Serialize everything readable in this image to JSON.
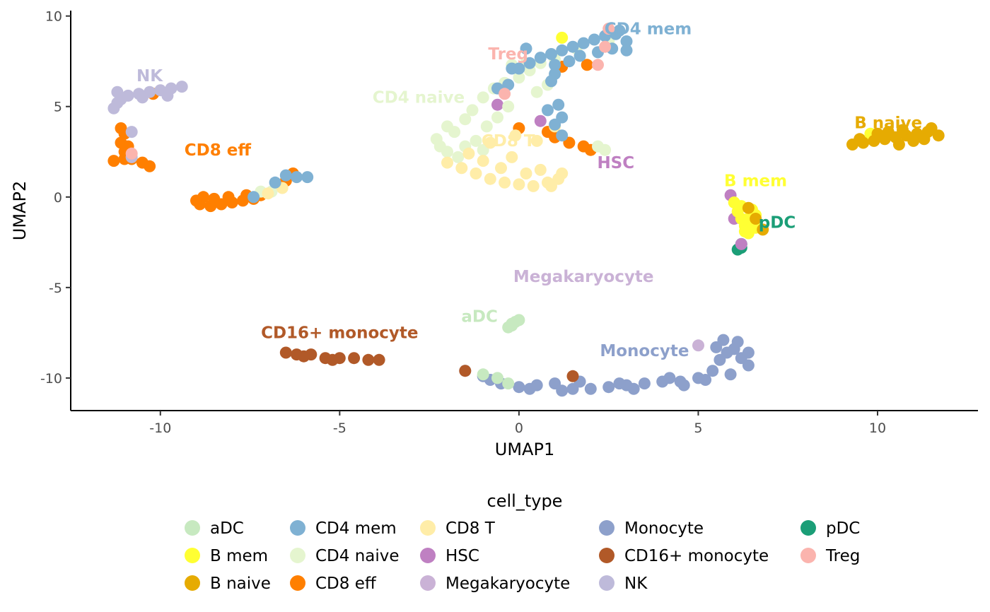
{
  "chart_data": {
    "type": "scatter",
    "title": "",
    "xlabel": "UMAP1",
    "ylabel": "UMAP2",
    "xlim": [
      -12.5,
      12.8
    ],
    "ylim": [
      -11.8,
      10.3
    ],
    "xticks": [
      -10,
      -5,
      0,
      5,
      10
    ],
    "yticks": [
      -10,
      -5,
      0,
      5,
      10
    ],
    "x_tick_labels": [
      "-10",
      "-5",
      "0",
      "5",
      "10"
    ],
    "y_tick_labels": [
      "-10",
      "-5",
      "0",
      "5",
      "10"
    ],
    "grid": false,
    "legend": {
      "title": "cell_type",
      "position": "bottom",
      "columns": 5,
      "entries": [
        {
          "name": "aDC",
          "color": "#C7E9C0"
        },
        {
          "name": "B mem",
          "color": "#FFFF33"
        },
        {
          "name": "B naive",
          "color": "#E6AB02"
        },
        {
          "name": "CD4 mem",
          "color": "#7FB1D3"
        },
        {
          "name": "CD4 naive",
          "color": "#E5F5CF"
        },
        {
          "name": "CD8 eff",
          "color": "#FF7F00"
        },
        {
          "name": "CD8 T",
          "color": "#FFEDA8"
        },
        {
          "name": "HSC",
          "color": "#BF80C2"
        },
        {
          "name": "Megakaryocyte",
          "color": "#CAB2D6"
        },
        {
          "name": "Monocyte",
          "color": "#8DA0CB"
        },
        {
          "name": "CD16+ monocyte",
          "color": "#B15928"
        },
        {
          "name": "NK",
          "color": "#BEBADA"
        },
        {
          "name": "pDC",
          "color": "#1B9E77"
        },
        {
          "name": "Treg",
          "color": "#FBB4AE"
        }
      ]
    },
    "cluster_labels": [
      {
        "text": "CD4 mem",
        "x": 3.6,
        "y": 9.0,
        "color": "#7FB1D3"
      },
      {
        "text": "Treg",
        "x": -0.3,
        "y": 7.6,
        "color": "#FBB4AE"
      },
      {
        "text": "NK",
        "x": -10.3,
        "y": 6.4,
        "color": "#BEBADA"
      },
      {
        "text": "CD4 naive",
        "x": -2.8,
        "y": 5.2,
        "color": "#E5F5CF"
      },
      {
        "text": "B naive",
        "x": 10.3,
        "y": 3.8,
        "color": "#E6AB02"
      },
      {
        "text": "CD8 T",
        "x": -0.3,
        "y": 2.8,
        "color": "#FFEDA8"
      },
      {
        "text": "CD8 eff",
        "x": -8.4,
        "y": 2.3,
        "color": "#FF7F00"
      },
      {
        "text": "HSC",
        "x": 2.7,
        "y": 1.6,
        "color": "#BF80C2"
      },
      {
        "text": "B mem",
        "x": 6.6,
        "y": 0.6,
        "color": "#FFFF33"
      },
      {
        "text": "pDC",
        "x": 7.2,
        "y": -1.7,
        "color": "#1B9E77"
      },
      {
        "text": "Megakaryocyte",
        "x": 1.8,
        "y": -4.7,
        "color": "#CAB2D6"
      },
      {
        "text": "aDC",
        "x": -1.1,
        "y": -6.9,
        "color": "#C7E9C0"
      },
      {
        "text": "CD16+ monocyte",
        "x": -5.0,
        "y": -7.8,
        "color": "#B15928"
      },
      {
        "text": "Monocyte",
        "x": 3.5,
        "y": -8.8,
        "color": "#8DA0CB"
      }
    ],
    "series": [
      {
        "name": "Monocyte",
        "color": "#8DA0CB",
        "points": [
          [
            -1.5,
            -9.6
          ],
          [
            -1.0,
            -9.9
          ],
          [
            -0.5,
            -10.3
          ],
          [
            0.0,
            -10.5
          ],
          [
            0.5,
            -10.4
          ],
          [
            1.0,
            -10.3
          ],
          [
            1.5,
            -10.6
          ],
          [
            2.0,
            -10.6
          ],
          [
            2.5,
            -10.5
          ],
          [
            3.0,
            -10.4
          ],
          [
            3.5,
            -10.3
          ],
          [
            4.0,
            -10.2
          ],
          [
            4.5,
            -10.2
          ],
          [
            5.0,
            -10.0
          ],
          [
            5.4,
            -9.6
          ],
          [
            5.6,
            -9.0
          ],
          [
            5.8,
            -8.6
          ],
          [
            6.0,
            -8.4
          ],
          [
            6.2,
            -8.9
          ],
          [
            6.4,
            -9.3
          ],
          [
            5.9,
            -9.8
          ],
          [
            5.2,
            -10.1
          ],
          [
            4.6,
            -10.4
          ],
          [
            3.2,
            -10.6
          ],
          [
            1.2,
            -10.7
          ],
          [
            0.3,
            -10.6
          ],
          [
            -0.8,
            -10.1
          ],
          [
            5.7,
            -7.9
          ],
          [
            6.1,
            -8.0
          ],
          [
            5.5,
            -8.3
          ],
          [
            6.4,
            -8.6
          ],
          [
            4.2,
            -10.0
          ],
          [
            2.8,
            -10.3
          ],
          [
            1.7,
            -10.2
          ]
        ]
      },
      {
        "name": "CD16+ monocyte",
        "color": "#B15928",
        "points": [
          [
            -6.5,
            -8.6
          ],
          [
            -6.2,
            -8.7
          ],
          [
            -5.8,
            -8.7
          ],
          [
            -5.4,
            -8.9
          ],
          [
            -5.0,
            -8.9
          ],
          [
            -4.6,
            -8.9
          ],
          [
            -4.2,
            -9.0
          ],
          [
            -3.9,
            -9.0
          ],
          [
            -6.0,
            -8.8
          ],
          [
            -5.2,
            -9.0
          ],
          [
            -1.5,
            -9.6
          ],
          [
            1.5,
            -9.9
          ]
        ]
      },
      {
        "name": "aDC",
        "color": "#C7E9C0",
        "points": [
          [
            -0.3,
            -7.2
          ],
          [
            -0.2,
            -7.0
          ],
          [
            0.0,
            -6.8
          ],
          [
            -0.1,
            -6.9
          ],
          [
            -0.2,
            -7.1
          ],
          [
            -1.0,
            -9.8
          ],
          [
            -0.6,
            -10.0
          ],
          [
            -0.3,
            -10.3
          ]
        ]
      },
      {
        "name": "Megakaryocyte",
        "color": "#CAB2D6",
        "points": [
          [
            5.0,
            -8.2
          ]
        ]
      },
      {
        "name": "pDC",
        "color": "#1B9E77",
        "points": [
          [
            6.1,
            -2.9
          ],
          [
            6.2,
            -2.8
          ],
          [
            6.2,
            -2.6
          ]
        ]
      },
      {
        "name": "HSC",
        "color": "#BF80C2",
        "points": [
          [
            5.9,
            0.1
          ],
          [
            6.2,
            -2.6
          ],
          [
            0.6,
            4.2
          ],
          [
            -0.6,
            5.1
          ],
          [
            6.0,
            -1.2
          ]
        ]
      },
      {
        "name": "B mem",
        "color": "#FFFF33",
        "points": [
          [
            6.0,
            -0.3
          ],
          [
            6.1,
            -0.8
          ],
          [
            6.2,
            -1.2
          ],
          [
            6.3,
            -1.6
          ],
          [
            6.4,
            -2.0
          ],
          [
            6.5,
            -1.5
          ],
          [
            6.6,
            -1.0
          ],
          [
            6.2,
            -0.5
          ],
          [
            6.4,
            -1.2
          ],
          [
            6.6,
            -1.7
          ],
          [
            6.3,
            -1.9
          ],
          [
            6.5,
            -0.7
          ],
          [
            1.2,
            8.8
          ],
          [
            9.8,
            3.5
          ]
        ]
      },
      {
        "name": "B naive",
        "color": "#E6AB02",
        "points": [
          [
            9.3,
            2.9
          ],
          [
            9.6,
            3.0
          ],
          [
            9.9,
            3.1
          ],
          [
            10.2,
            3.2
          ],
          [
            10.5,
            3.3
          ],
          [
            10.8,
            3.4
          ],
          [
            11.1,
            3.5
          ],
          [
            11.4,
            3.6
          ],
          [
            11.7,
            3.4
          ],
          [
            10.3,
            3.6
          ],
          [
            10.6,
            2.9
          ],
          [
            11.0,
            3.1
          ],
          [
            10.0,
            3.5
          ],
          [
            11.3,
            3.2
          ],
          [
            9.5,
            3.2
          ],
          [
            10.7,
            3.7
          ],
          [
            11.5,
            3.8
          ],
          [
            6.4,
            -0.6
          ],
          [
            6.6,
            -1.2
          ],
          [
            6.8,
            -1.8
          ]
        ]
      },
      {
        "name": "CD8 eff",
        "color": "#FF7F00",
        "points": [
          [
            -8.9,
            -0.4
          ],
          [
            -8.6,
            -0.5
          ],
          [
            -8.3,
            -0.4
          ],
          [
            -8.0,
            -0.3
          ],
          [
            -7.7,
            -0.2
          ],
          [
            -7.4,
            -0.1
          ],
          [
            -8.8,
            0.0
          ],
          [
            -8.5,
            -0.1
          ],
          [
            -8.1,
            0.0
          ],
          [
            -7.6,
            0.1
          ],
          [
            -9.0,
            -0.2
          ],
          [
            -7.2,
            0.1
          ],
          [
            -6.5,
            0.9
          ],
          [
            -6.3,
            1.3
          ],
          [
            -11.3,
            2.0
          ],
          [
            -11.0,
            2.1
          ],
          [
            -10.8,
            2.1
          ],
          [
            -10.5,
            1.9
          ],
          [
            -10.3,
            1.7
          ],
          [
            -11.0,
            2.5
          ],
          [
            -11.1,
            3.0
          ],
          [
            -11.0,
            3.5
          ],
          [
            -11.1,
            3.8
          ],
          [
            -10.9,
            2.8
          ],
          [
            -10.2,
            5.7
          ],
          [
            0.0,
            3.8
          ],
          [
            0.8,
            3.6
          ],
          [
            1.0,
            3.3
          ],
          [
            1.4,
            3.0
          ],
          [
            1.8,
            2.8
          ],
          [
            2.0,
            2.6
          ],
          [
            1.2,
            7.2
          ],
          [
            1.9,
            7.3
          ]
        ]
      },
      {
        "name": "NK",
        "color": "#BEBADA",
        "points": [
          [
            -11.3,
            4.9
          ],
          [
            -11.2,
            5.2
          ],
          [
            -11.1,
            5.4
          ],
          [
            -10.9,
            5.6
          ],
          [
            -10.6,
            5.7
          ],
          [
            -10.3,
            5.8
          ],
          [
            -10.0,
            5.9
          ],
          [
            -9.7,
            6.0
          ],
          [
            -9.4,
            6.1
          ],
          [
            -9.8,
            5.6
          ],
          [
            -10.5,
            5.5
          ],
          [
            -11.2,
            5.8
          ],
          [
            -10.8,
            3.6
          ],
          [
            -10.8,
            2.2
          ]
        ]
      },
      {
        "name": "CD4 naive",
        "color": "#E5F5CF",
        "points": [
          [
            -2.3,
            3.2
          ],
          [
            -2.2,
            2.8
          ],
          [
            -2.0,
            2.5
          ],
          [
            -1.8,
            3.6
          ],
          [
            -1.5,
            4.3
          ],
          [
            -1.3,
            4.8
          ],
          [
            -1.0,
            5.5
          ],
          [
            -0.7,
            6.0
          ],
          [
            -0.4,
            6.3
          ],
          [
            0.0,
            6.6
          ],
          [
            0.3,
            7.0
          ],
          [
            0.6,
            7.4
          ],
          [
            1.0,
            7.6
          ],
          [
            -1.7,
            2.2
          ],
          [
            -1.2,
            3.1
          ],
          [
            -0.9,
            3.9
          ],
          [
            -0.6,
            4.4
          ],
          [
            -0.3,
            5.0
          ],
          [
            -2.0,
            3.9
          ],
          [
            -1.5,
            2.8
          ],
          [
            0.5,
            5.8
          ],
          [
            0.8,
            6.2
          ],
          [
            2.4,
            2.6
          ],
          [
            2.2,
            2.8
          ],
          [
            -0.2,
            7.3
          ],
          [
            -6.9,
            0.3
          ],
          [
            -7.2,
            0.3
          ],
          [
            -1.0,
            2.6
          ],
          [
            1.6,
            8.2
          ],
          [
            2.5,
            8.6
          ],
          [
            0.2,
            7.4
          ]
        ]
      },
      {
        "name": "CD8 T",
        "color": "#FFEDA8",
        "points": [
          [
            -1.6,
            1.6
          ],
          [
            -1.2,
            1.3
          ],
          [
            -0.8,
            1.0
          ],
          [
            -0.4,
            0.8
          ],
          [
            0.0,
            0.7
          ],
          [
            0.4,
            0.6
          ],
          [
            0.8,
            0.8
          ],
          [
            1.1,
            1.0
          ],
          [
            -1.0,
            2.0
          ],
          [
            -0.5,
            1.6
          ],
          [
            0.2,
            1.3
          ],
          [
            0.6,
            1.5
          ],
          [
            -1.4,
            2.4
          ],
          [
            -0.2,
            2.2
          ],
          [
            0.9,
            0.6
          ],
          [
            1.2,
            1.3
          ],
          [
            -0.8,
            3.0
          ],
          [
            -0.1,
            3.4
          ],
          [
            0.5,
            3.1
          ],
          [
            -2.0,
            1.9
          ],
          [
            -7.0,
            0.2
          ],
          [
            -6.6,
            0.5
          ],
          [
            1.0,
            3.9
          ]
        ]
      },
      {
        "name": "CD4 mem",
        "color": "#7FB1D3",
        "points": [
          [
            0.0,
            7.1
          ],
          [
            0.3,
            7.4
          ],
          [
            0.6,
            7.7
          ],
          [
            0.9,
            7.9
          ],
          [
            1.2,
            8.1
          ],
          [
            1.5,
            8.3
          ],
          [
            1.8,
            8.5
          ],
          [
            2.1,
            8.7
          ],
          [
            2.4,
            8.9
          ],
          [
            2.7,
            9.0
          ],
          [
            3.0,
            8.6
          ],
          [
            3.0,
            8.1
          ],
          [
            2.6,
            8.2
          ],
          [
            2.2,
            8.0
          ],
          [
            1.7,
            7.8
          ],
          [
            1.4,
            7.5
          ],
          [
            1.0,
            7.3
          ],
          [
            2.8,
            9.2
          ],
          [
            1.0,
            6.8
          ],
          [
            0.9,
            6.4
          ],
          [
            1.1,
            5.1
          ],
          [
            1.2,
            4.4
          ],
          [
            0.8,
            4.8
          ],
          [
            1.0,
            4.0
          ],
          [
            1.2,
            3.4
          ],
          [
            -0.6,
            6.0
          ],
          [
            -0.3,
            6.2
          ],
          [
            -6.2,
            1.1
          ],
          [
            -6.5,
            1.2
          ],
          [
            -6.8,
            0.8
          ],
          [
            -5.9,
            1.1
          ],
          [
            -7.4,
            0.0
          ],
          [
            -0.2,
            7.1
          ],
          [
            0.2,
            8.2
          ]
        ]
      },
      {
        "name": "Treg",
        "color": "#FBB4AE",
        "points": [
          [
            -0.4,
            5.7
          ],
          [
            2.2,
            7.3
          ],
          [
            2.5,
            9.3
          ],
          [
            2.4,
            8.3
          ],
          [
            -10.8,
            2.4
          ]
        ]
      }
    ]
  }
}
